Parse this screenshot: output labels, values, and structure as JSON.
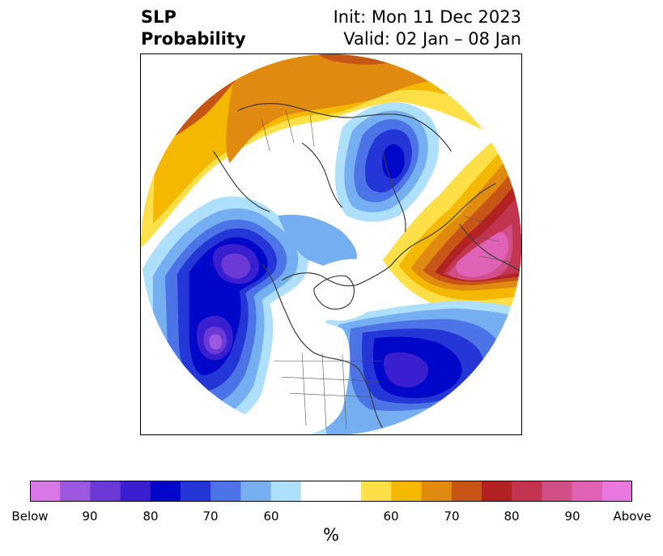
{
  "title": {
    "left_line1": "SLP",
    "left_line2": "Probability",
    "right_line1": "Init: Mon 11 Dec 2023",
    "right_line2": "Valid: 02 Jan – 08 Jan"
  },
  "colorbar": {
    "unit_label": "%",
    "colors": [
      "#d977e8",
      "#9c58de",
      "#6b3ad6",
      "#3a1fd1",
      "#0007c9",
      "#2437d6",
      "#4d74e6",
      "#76aff1",
      "#aee0fb",
      "#ffffff",
      "#ffffff",
      "#fde047",
      "#f5b800",
      "#e08a10",
      "#c85518",
      "#b22222",
      "#c2344f",
      "#cf4f86",
      "#e062b6",
      "#e878e0"
    ],
    "ticks": [
      "Below",
      "90",
      "80",
      "70",
      "60",
      "60",
      "70",
      "80",
      "90",
      "Above"
    ]
  },
  "map": {
    "projection": "north-polar-stereographic",
    "features": [
      "SLP probability shading",
      "coastlines",
      "country borders",
      "US state borders"
    ]
  }
}
